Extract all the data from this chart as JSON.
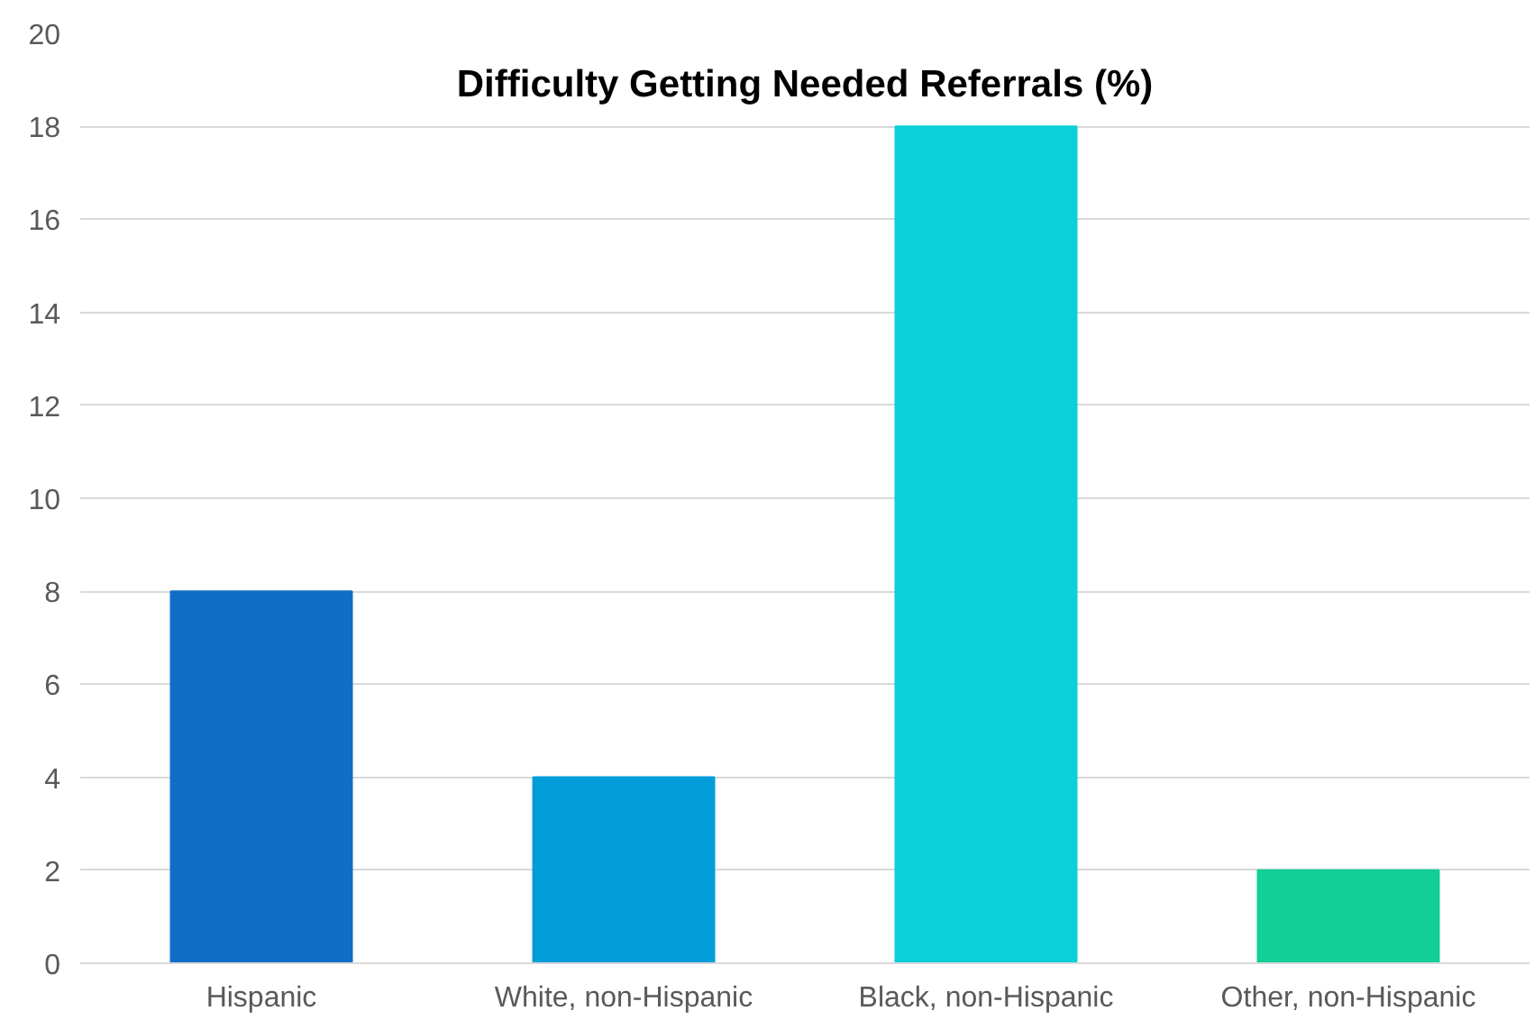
{
  "chart_data": {
    "type": "bar",
    "title": "Difficulty Getting Needed Referrals (%)",
    "categories": [
      "Hispanic",
      "White, non-Hispanic",
      "Black, non-Hispanic",
      "Other, non-Hispanic"
    ],
    "values": [
      8,
      4,
      18,
      2
    ],
    "colors": [
      "#106ec6",
      "#039dd9",
      "#0bd0d9",
      "#12cf96"
    ],
    "ylim": [
      0,
      20
    ],
    "yticks": [
      0,
      2,
      4,
      6,
      8,
      10,
      12,
      14,
      16,
      18,
      20
    ],
    "grid": "y"
  }
}
